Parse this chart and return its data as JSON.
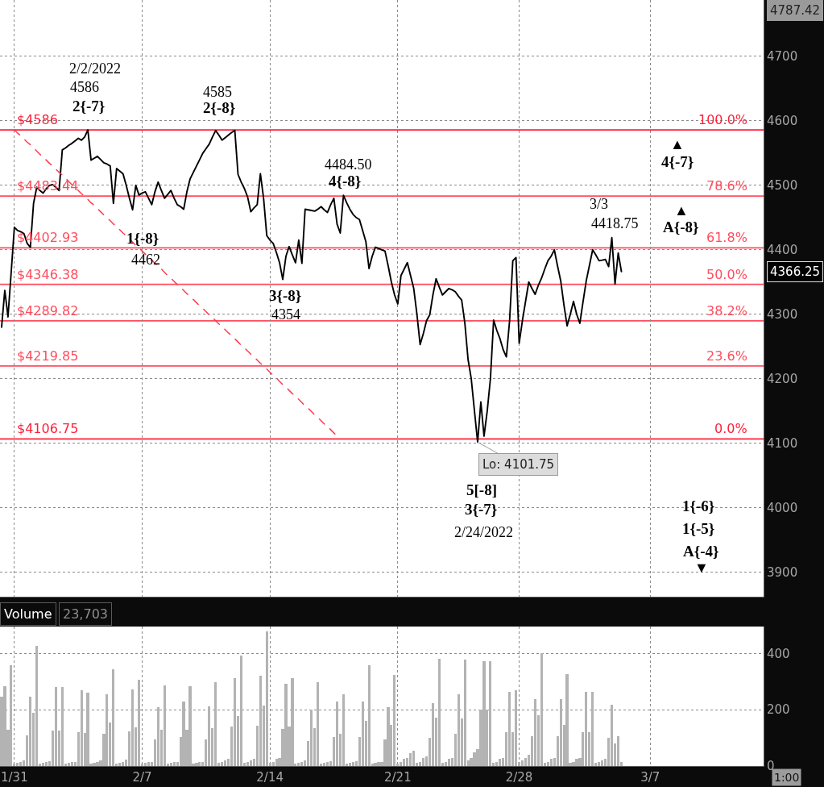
{
  "chart_data": [
    {
      "type": "line",
      "ylim": [
        3862,
        4787.42
      ],
      "yticks": [
        3900,
        4000,
        4100,
        4200,
        4300,
        4400,
        4500,
        4600,
        4700
      ],
      "tick_labels": "y",
      "grid": true,
      "categories": [
        null,
        null,
        null,
        null,
        null,
        null,
        null,
        null,
        null,
        null,
        null,
        null,
        null,
        null,
        null,
        null,
        null,
        null,
        null,
        null,
        null,
        null,
        null,
        null,
        null,
        null,
        null,
        null,
        null,
        null,
        null,
        null,
        null,
        null,
        null,
        null,
        null,
        null,
        null,
        null,
        null,
        null,
        null,
        null,
        null,
        null,
        null,
        null,
        null,
        null,
        null,
        null,
        null,
        null,
        null,
        null,
        null,
        null,
        null,
        null,
        null,
        null,
        null,
        null,
        null,
        null,
        null,
        null,
        null,
        null,
        null,
        null,
        null,
        null,
        null,
        null,
        null,
        null,
        null,
        null,
        null,
        null,
        null,
        null,
        null,
        null,
        null,
        null,
        null,
        null,
        null,
        null,
        null,
        null,
        null,
        null,
        null,
        null,
        null,
        null,
        null,
        null,
        null,
        null,
        null,
        null,
        null,
        null,
        null,
        null,
        null,
        null,
        null,
        null,
        null,
        null,
        null,
        null,
        null,
        null,
        null,
        null,
        null,
        null,
        null,
        null,
        null,
        null,
        null,
        null,
        null,
        null,
        null,
        null,
        null,
        null,
        null,
        null,
        null,
        null,
        null,
        null,
        null,
        null,
        null,
        null,
        null,
        null,
        null,
        null,
        null,
        null,
        null,
        null,
        null,
        null,
        null,
        null,
        null,
        null,
        null,
        null,
        null,
        null,
        null,
        null,
        null,
        null,
        null,
        null,
        null,
        null,
        null,
        null,
        null,
        null,
        null,
        null,
        null,
        null,
        null,
        null,
        null,
        null,
        null,
        null,
        null,
        null,
        null,
        null,
        null,
        null,
        null,
        null,
        null,
        null,
        null,
        null,
        null,
        null,
        null,
        null,
        null,
        null,
        null,
        null,
        null,
        null,
        null,
        null,
        null,
        null,
        null,
        null,
        null,
        null,
        null,
        null,
        null,
        null,
        null,
        null,
        null,
        null,
        null,
        null,
        null,
        null,
        null,
        null,
        null,
        null,
        null,
        null,
        null,
        null,
        null,
        null,
        null
      ],
      "series": [
        {
          "color": "#000000",
          "values": [
            4280,
            4337,
            4296,
            4365,
            4435,
            4430,
            4428,
            4425,
            4410,
            4404,
            4472,
            4497,
            4492,
            4488,
            4495,
            4500,
            4501,
            4497,
            4492,
            4555,
            4558,
            4562,
            4565,
            4569,
            4573,
            4570,
            4575,
            4586,
            4539,
            4542,
            4545,
            4540,
            4535,
            4533,
            4530,
            4472,
            4526,
            4522,
            4518,
            4500,
            4480,
            4462,
            4500,
            4485,
            4488,
            4490,
            4480,
            4470,
            4490,
            4505,
            4492,
            4480,
            4486,
            4492,
            4480,
            4470,
            4467,
            4463,
            4490,
            4510,
            4520,
            4530,
            4540,
            4550,
            4557,
            4564,
            4575,
            4585,
            4578,
            4570,
            4574,
            4578,
            4582,
            4585,
            4517,
            4505,
            4495,
            4482,
            4459,
            4465,
            4470,
            4518,
            4480,
            4422,
            4415,
            4410,
            4396,
            4380,
            4354,
            4390,
            4405,
            4392,
            4380,
            4415,
            4379,
            4463,
            4462,
            4461,
            4460,
            4463,
            4467,
            4462,
            4458,
            4470,
            4480,
            4440,
            4426,
            4484.5,
            4473,
            4463,
            4455,
            4450,
            4447,
            4430,
            4413,
            4371,
            4390,
            4404,
            4402,
            4400,
            4398,
            4375,
            4350,
            4330,
            4316,
            4360,
            4370,
            4380,
            4360,
            4340,
            4300,
            4253,
            4270,
            4290,
            4299,
            4330,
            4355,
            4342,
            4330,
            4335,
            4340,
            4338,
            4335,
            4328,
            4322,
            4286,
            4230,
            4200,
            4150,
            4101.75,
            4164,
            4111,
            4150,
            4200,
            4291,
            4275,
            4262,
            4245,
            4234,
            4290,
            4383,
            4388,
            4255,
            4290,
            4320,
            4350,
            4340,
            4331,
            4345,
            4356,
            4370,
            4383,
            4390,
            4400,
            4375,
            4352,
            4315,
            4282,
            4300,
            4320,
            4300,
            4286,
            4320,
            4352,
            4376,
            4400,
            4392,
            4383,
            4384,
            4385,
            4374,
            4418.75,
            4347,
            4395,
            4366.25,
            null,
            null,
            null,
            null,
            null,
            null,
            null,
            null,
            null,
            null,
            null,
            null,
            null,
            null,
            null,
            null,
            null,
            null,
            null,
            null,
            null,
            null,
            null,
            null,
            null,
            null,
            null,
            null,
            null,
            null,
            null,
            null,
            null,
            null,
            null,
            null,
            null,
            null,
            null,
            null,
            null,
            null,
            null,
            null
          ]
        },
        {
          "type": "line",
          "color": "#ff3b4e",
          "line_style": "dashed",
          "values": [
            null,
            null,
            null,
            null,
            4586,
            4581,
            4577,
            4572,
            4567,
            4563,
            4558,
            4553,
            4548,
            4544,
            4539,
            4534,
            4530,
            4525,
            4520,
            4516,
            4511,
            4506,
            4501,
            4497,
            4492,
            4487,
            4483,
            4478,
            4473,
            4469,
            4464,
            4459,
            4454,
            4450,
            4445,
            4440,
            4436,
            4431,
            4426,
            4422,
            4417,
            4412,
            4407,
            4403,
            4398,
            4393,
            4389,
            4384,
            4379,
            4375,
            4370,
            4365,
            4360,
            4356,
            4351,
            4346,
            4342,
            4337,
            4332,
            4328,
            4323,
            4318,
            4313,
            4309,
            4304,
            4299,
            4295,
            4290,
            4285,
            4281,
            4276,
            4271,
            4267,
            4262,
            4257,
            4252,
            4248,
            4243,
            4238,
            4234,
            4229,
            4224,
            4220,
            4215,
            4210,
            4205,
            4201,
            4196,
            4191,
            4187,
            4182,
            4177,
            4173,
            4168,
            4163,
            4158,
            4154,
            4149,
            4144,
            4140,
            4135,
            4130,
            4126,
            4121,
            4116,
            4111,
            4106.75,
            null,
            null,
            null,
            null,
            null,
            null,
            null,
            null,
            null,
            null,
            null,
            null,
            null,
            null,
            null,
            null,
            null,
            null,
            null,
            null,
            null,
            null,
            null,
            null,
            null,
            null,
            null,
            null,
            null,
            null,
            null,
            null,
            null,
            null,
            null,
            null,
            null,
            null,
            null,
            null,
            null,
            null,
            null,
            null,
            null,
            null,
            null,
            null,
            null,
            null,
            null,
            null,
            null,
            null,
            null,
            null,
            null,
            null,
            null,
            null,
            null,
            null,
            null,
            null,
            null,
            null,
            null,
            null,
            null,
            null,
            null,
            null,
            null,
            null,
            null,
            null,
            null,
            null,
            null,
            null,
            null,
            null,
            null,
            null,
            null,
            null,
            null,
            null,
            null,
            null,
            null,
            null,
            null,
            null,
            null,
            null,
            null,
            null,
            null,
            null,
            null,
            null,
            null,
            null,
            null,
            null,
            null,
            null,
            null,
            null,
            null,
            null,
            null,
            null,
            null,
            null,
            null,
            null,
            null,
            null,
            null,
            null,
            null,
            null,
            null,
            null,
            null,
            null,
            null,
            null,
            null,
            null
          ]
        }
      ],
      "ref_lines": [
        {
          "axis": "y",
          "value": 4586,
          "label": "$4586",
          "color": "#ff1f3a"
        },
        {
          "axis": "y",
          "value": 4483.44,
          "label": "$4483.44",
          "color": "#ff4d5e"
        },
        {
          "axis": "y",
          "value": 4402.93,
          "label": "$4402.93",
          "color": "#ff4d5e"
        },
        {
          "axis": "y",
          "value": 4346.38,
          "label": "$4346.38",
          "color": "#ff4d5e"
        },
        {
          "axis": "y",
          "value": 4289.82,
          "label": "$4289.82",
          "color": "#ff4d5e"
        },
        {
          "axis": "y",
          "value": 4219.85,
          "label": "$4219.85",
          "color": "#ff4d5e"
        },
        {
          "axis": "y",
          "value": 4106.75,
          "label": "$4106.75",
          "color": "#ff1f3a"
        }
      ],
      "annotations": [
        "4787.42",
        "4366.25",
        "2/2/2022",
        "4586",
        "2{-7}",
        "4585",
        "2{-8}",
        "1{-8}",
        "4462",
        "3{-8}",
        "4354",
        "4484.50",
        "4{-8}",
        "3/3",
        "4418.75",
        "▲",
        "4{-7}",
        "▲",
        "A{-8}",
        "5[-8]",
        "3{-7}",
        "2/24/2022",
        "1{-6}",
        "1{-5}",
        "A{-4}",
        "▼",
        {
          "text": "Lo: 4101.75",
          "y": 4101.75
        },
        {
          "text": "100.0%",
          "y": 4586
        },
        {
          "text": "78.6%",
          "y": 4483.44
        },
        {
          "text": "61.8%",
          "y": 4402.93
        },
        {
          "text": "50.0%",
          "y": 4346.38
        },
        {
          "text": "38.2%",
          "y": 4289.82
        },
        {
          "text": "23.6%",
          "y": 4219.85
        },
        {
          "text": "0.0%",
          "y": 4106.75
        }
      ]
    },
    {
      "type": "bar",
      "title": "Volume",
      "subtitle": "23,703",
      "ylim": [
        0,
        496
      ],
      "yticks": [
        0,
        200,
        400
      ],
      "grid": true,
      "color": "#b3b3b3",
      "annotations": [
        "1:00"
      ],
      "categories": [
        null,
        null,
        null,
        null,
        "1/31",
        null,
        null,
        null,
        null,
        null,
        null,
        null,
        null,
        null,
        null,
        null,
        null,
        null,
        null,
        null,
        null,
        null,
        null,
        null,
        null,
        null,
        null,
        null,
        null,
        null,
        null,
        null,
        null,
        null,
        null,
        null,
        null,
        null,
        null,
        null,
        null,
        null,
        null,
        null,
        "2/7",
        null,
        null,
        null,
        null,
        null,
        null,
        null,
        null,
        null,
        null,
        null,
        null,
        null,
        null,
        null,
        null,
        null,
        null,
        null,
        null,
        null,
        null,
        null,
        null,
        null,
        null,
        null,
        null,
        null,
        null,
        null,
        null,
        null,
        null,
        null,
        null,
        null,
        null,
        null,
        "2/14",
        null,
        null,
        null,
        null,
        null,
        null,
        null,
        null,
        null,
        null,
        null,
        null,
        null,
        null,
        null,
        null,
        null,
        null,
        null,
        null,
        null,
        null,
        null,
        null,
        null,
        null,
        null,
        null,
        null,
        null,
        null,
        null,
        null,
        null,
        null,
        null,
        null,
        null,
        null,
        "2/21",
        null,
        null,
        null,
        null,
        null,
        null,
        null,
        null,
        null,
        null,
        null,
        null,
        null,
        null,
        null,
        null,
        null,
        null,
        null,
        null,
        null,
        null,
        null,
        null,
        null,
        null,
        null,
        null,
        null,
        null,
        null,
        null,
        null,
        null,
        null,
        null,
        null,
        "2/28",
        null,
        null,
        null,
        null,
        null,
        null,
        null,
        null,
        null,
        null,
        null,
        null,
        null,
        null,
        null,
        null,
        null,
        null,
        null,
        null,
        null,
        null,
        null,
        null,
        null,
        null,
        null,
        null,
        null,
        null,
        null,
        null,
        null,
        null,
        null,
        null,
        null,
        null,
        null,
        null,
        "3/7",
        null,
        null,
        null,
        null,
        null,
        null,
        null,
        null,
        null,
        null,
        null,
        null,
        null,
        null,
        null,
        null,
        null,
        null,
        null,
        null,
        null,
        null,
        null,
        null,
        null,
        null,
        null,
        null,
        null,
        null,
        null,
        null,
        null,
        null,
        null
      ],
      "values": [
        246,
        284,
        130,
        359,
        10,
        12,
        15,
        20,
        110,
        247,
        190,
        428,
        10,
        12,
        15,
        18,
        125,
        280,
        125,
        280,
        10,
        12,
        15,
        15,
        120,
        269,
        117,
        261,
        10,
        12,
        15,
        20,
        115,
        256,
        155,
        344,
        10,
        12,
        15,
        22,
        123,
        273,
        139,
        308,
        10,
        12,
        15,
        15,
        95,
        210,
        130,
        288,
        10,
        12,
        15,
        15,
        103,
        228,
        128,
        284,
        10,
        12,
        15,
        15,
        96,
        213,
        134,
        297,
        12,
        15,
        20,
        25,
        140,
        312,
        177,
        393,
        12,
        15,
        20,
        25,
        144,
        321,
        216,
        480,
        12,
        15,
        25,
        30,
        132,
        293,
        140,
        312,
        10,
        12,
        15,
        20,
        90,
        200,
        135,
        299,
        10,
        12,
        15,
        18,
        103,
        228,
        115,
        256,
        10,
        12,
        15,
        18,
        103,
        228,
        162,
        359,
        10,
        12,
        15,
        15,
        94,
        209,
        146,
        325,
        10,
        15,
        25,
        30,
        45,
        55,
        12,
        15,
        30,
        35,
        101,
        224,
        171,
        381,
        12,
        15,
        25,
        30,
        115,
        256,
        170,
        378,
        20,
        30,
        50,
        60,
        200,
        374,
        200,
        372,
        12,
        15,
        25,
        30,
        119,
        265,
        121,
        269,
        15,
        20,
        30,
        40,
        107,
        237,
        180,
        400,
        12,
        15,
        25,
        30,
        107,
        237,
        147,
        327,
        12,
        15,
        25,
        30,
        119,
        265,
        119,
        265,
        12,
        15,
        20,
        25,
        100,
        218,
        80,
        106,
        15,
        null,
        null,
        null,
        null,
        null,
        null,
        null,
        null,
        null,
        null,
        null,
        null,
        null,
        null,
        null,
        null,
        null,
        null,
        null,
        null,
        null,
        null,
        null,
        null,
        null,
        null,
        null,
        null,
        null,
        null,
        null,
        null,
        null,
        null,
        null,
        null,
        null,
        null,
        null,
        null,
        null,
        null,
        null,
        null
      ]
    }
  ]
}
